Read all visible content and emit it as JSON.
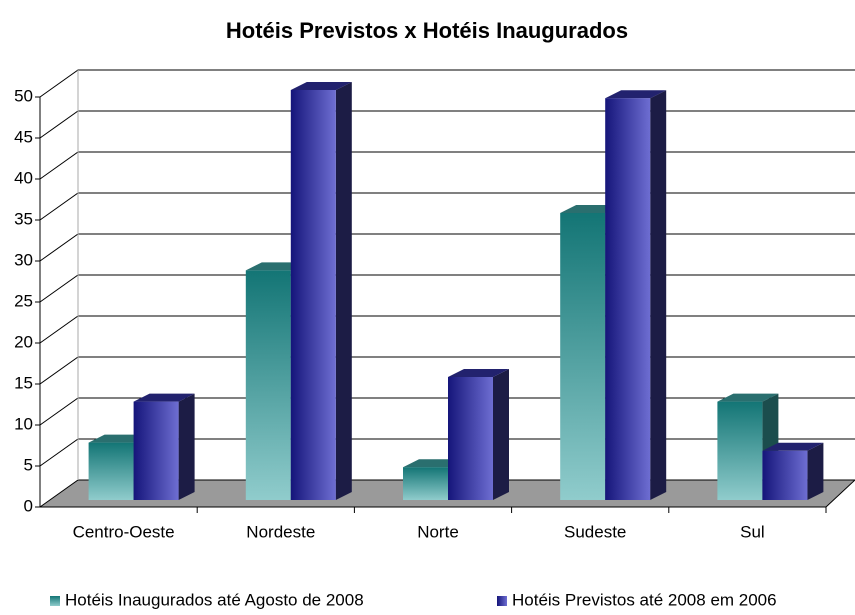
{
  "chart_data": {
    "type": "bar3d",
    "title": "Hotéis Previstos x Hotéis Inaugurados",
    "categories": [
      "Centro-Oeste",
      "Nordeste",
      "Norte",
      "Sudeste",
      "Sul"
    ],
    "series": [
      {
        "name": "Hotéis Inaugurados até Agosto de 2008",
        "color": "#2a8a8a",
        "values": [
          7,
          28,
          4,
          35,
          12
        ]
      },
      {
        "name": "Hotéis Previstos até 2008 em 2006",
        "color": "#3a3aa8",
        "values": [
          12,
          50,
          15,
          49,
          6
        ]
      }
    ],
    "ylim": [
      0,
      50
    ],
    "yticks": [
      0,
      5,
      10,
      15,
      20,
      25,
      30,
      35,
      40,
      45,
      50
    ],
    "grid": true,
    "legend": "bottom"
  }
}
